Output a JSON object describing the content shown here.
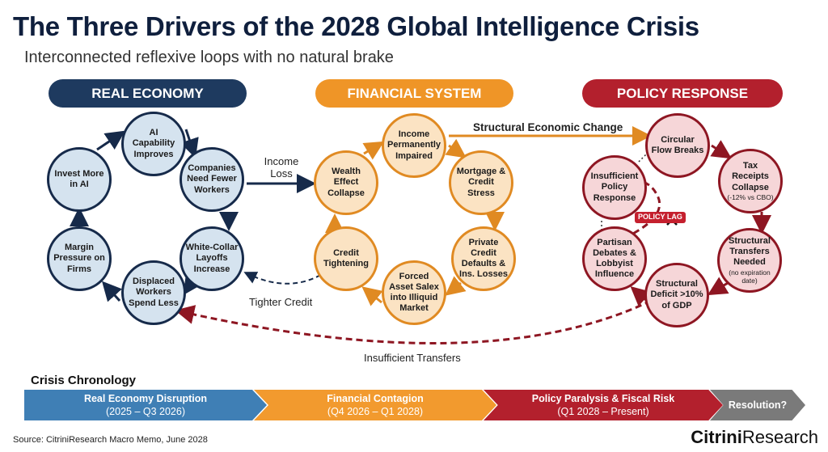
{
  "title": "The Three Drivers of the 2028 Global Intelligence Crisis",
  "subtitle": "Interconnected reflexive loops with no natural brake",
  "colors": {
    "real_economy": "#1e3a5f",
    "financial_system": "#ef9527",
    "policy_response": "#b3202d",
    "resolution": "#7a7a7a",
    "timeline_blue": "#3f7fb5"
  },
  "sections": {
    "real_economy": {
      "label": "REAL ECONOMY",
      "nodes": [
        "AI Capability Improves",
        "Companies Need Fewer Workers",
        "White-Collar Layoffs Increase",
        "Displaced Workers Spend Less",
        "Margin Pressure on Firms",
        "Invest More in AI"
      ]
    },
    "financial_system": {
      "label": "FINANCIAL SYSTEM",
      "nodes": [
        "Income Permanently Impaired",
        "Mortgage & Credit Stress",
        "Private Credit Defaults & Ins. Losses",
        "Forced Asset Salex into Illiquid Market",
        "Credit Tightening",
        "Wealth Effect Collapse"
      ]
    },
    "policy_response": {
      "label": "POLICY RESPONSE",
      "nodes": [
        "Circular Flow Breaks",
        "Tax Receipts Collapse",
        "Structural Transfers Needed",
        "Structural Deficit >10% of GDP",
        "Partisan Debates & Lobbyist Influence",
        "Insufficient Policy Response"
      ],
      "notes": {
        "tax": "(-12% vs CBO)",
        "transfers": "(no expiration date)"
      },
      "policy_lag": "POLICY LAG"
    }
  },
  "links": {
    "income_loss": "Income Loss",
    "tighter_credit": "Tighter Credit",
    "structural_change": "Structural Economic Change",
    "insufficient_transfers": "Insufficient Transfers"
  },
  "timeline": {
    "title": "Crisis Chronology",
    "phases": [
      {
        "label": "Real Economy Disruption",
        "period": "(2025 – Q3 2026)"
      },
      {
        "label": "Financial Contagion",
        "period": "(Q4 2026 – Q1 2028)"
      },
      {
        "label": "Policy Paralysis & Fiscal Risk",
        "period": "(Q1 2028 – Present)"
      },
      {
        "label": "Resolution?"
      }
    ]
  },
  "footer": {
    "source": "Source: CitriniResearch Macro Memo, June 2028",
    "logo_bold": "Citrini",
    "logo_light": "Research"
  }
}
